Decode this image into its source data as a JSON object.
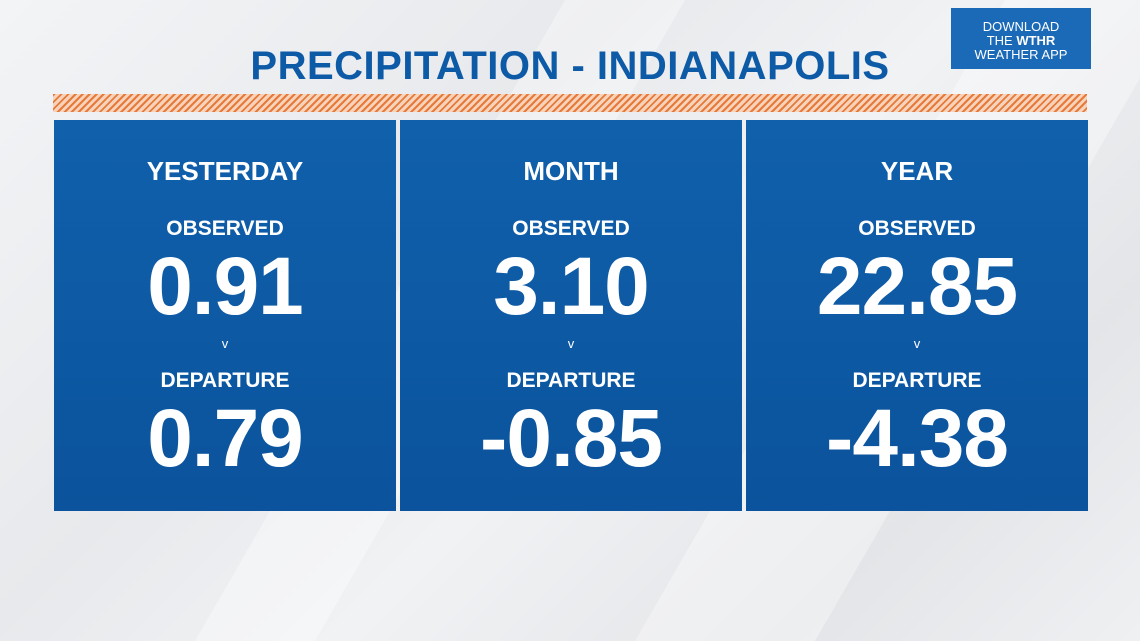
{
  "title": "PRECIPITATION - INDIANAPOLIS",
  "app_badge": {
    "line1": "DOWNLOAD",
    "line2_prefix": "THE ",
    "line2_brand": "WTHR",
    "line3": "WEATHER APP"
  },
  "colors": {
    "title": "#0d5aa7",
    "panel": "#0b579f",
    "stripe": "#e67a3b",
    "badge": "#1b6ab8"
  },
  "panels": [
    {
      "heading": "YESTERDAY",
      "observed_label": "OBSERVED",
      "observed": "0.91",
      "separator": "v",
      "departure_label": "DEPARTURE",
      "departure": "0.79"
    },
    {
      "heading": "MONTH",
      "observed_label": "OBSERVED",
      "observed": "3.10",
      "separator": "v",
      "departure_label": "DEPARTURE",
      "departure": "-0.85"
    },
    {
      "heading": "YEAR",
      "observed_label": "OBSERVED",
      "observed": "22.85",
      "separator": "v",
      "departure_label": "DEPARTURE",
      "departure": "-4.38"
    }
  ]
}
